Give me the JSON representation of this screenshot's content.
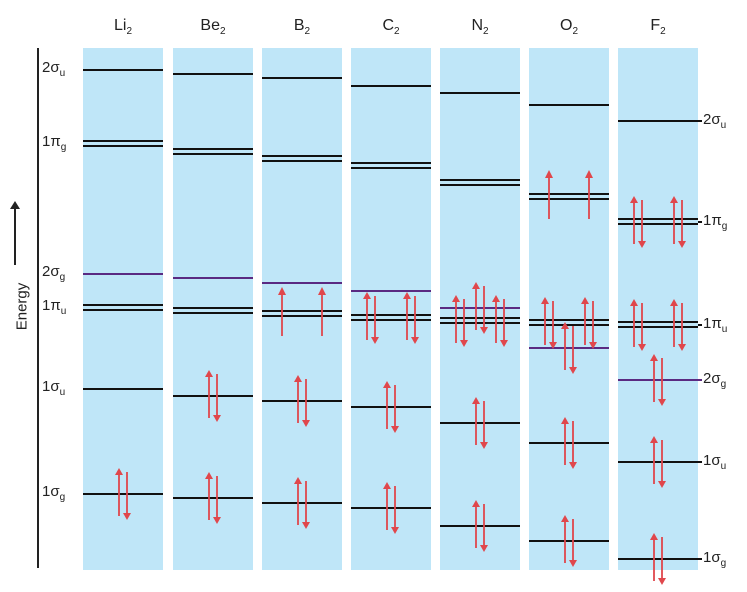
{
  "axis": {
    "label": "Energy"
  },
  "colors": {
    "panel": "#bfe6f8",
    "level": "#111111",
    "sigma_g2p": "#5a2a82",
    "electron": "#e0474c"
  },
  "levels_left": [
    {
      "base": "2σ",
      "sub": "u"
    },
    {
      "base": "1π",
      "sub": "g"
    },
    {
      "base": "2σ",
      "sub": "g"
    },
    {
      "base": "1π",
      "sub": "u"
    },
    {
      "base": "1σ",
      "sub": "u"
    },
    {
      "base": "1σ",
      "sub": "g"
    }
  ],
  "levels_right": [
    {
      "base": "2σ",
      "sub": "u"
    },
    {
      "base": "1π",
      "sub": "g"
    },
    {
      "base": "1π",
      "sub": "u"
    },
    {
      "base": "2σ",
      "sub": "g"
    },
    {
      "base": "1σ",
      "sub": "u"
    },
    {
      "base": "1σ",
      "sub": "g"
    }
  ],
  "molecules": [
    {
      "name": "Li",
      "sub": "2",
      "occupancy": {
        "s1g": 2,
        "s1u": 0,
        "p1u": 0,
        "s2g": 0,
        "p1g": 0
      }
    },
    {
      "name": "Be",
      "sub": "2",
      "occupancy": {
        "s1g": 2,
        "s1u": 2,
        "p1u": 0,
        "s2g": 0,
        "p1g": 0
      }
    },
    {
      "name": "B",
      "sub": "2",
      "occupancy": {
        "s1g": 2,
        "s1u": 2,
        "p1u": 2,
        "s2g": 0,
        "p1g": 0
      }
    },
    {
      "name": "C",
      "sub": "2",
      "occupancy": {
        "s1g": 2,
        "s1u": 2,
        "p1u": 4,
        "s2g": 0,
        "p1g": 0
      }
    },
    {
      "name": "N",
      "sub": "2",
      "occupancy": {
        "s1g": 2,
        "s1u": 2,
        "p1u": 4,
        "s2g": 2,
        "p1g": 0
      }
    },
    {
      "name": "O",
      "sub": "2",
      "occupancy": {
        "s1g": 2,
        "s1u": 2,
        "p1u": 4,
        "s2g": 2,
        "p1g": 2
      }
    },
    {
      "name": "F",
      "sub": "2",
      "occupancy": {
        "s1g": 2,
        "s1u": 2,
        "p1u": 4,
        "s2g": 2,
        "p1g": 4
      }
    }
  ]
}
